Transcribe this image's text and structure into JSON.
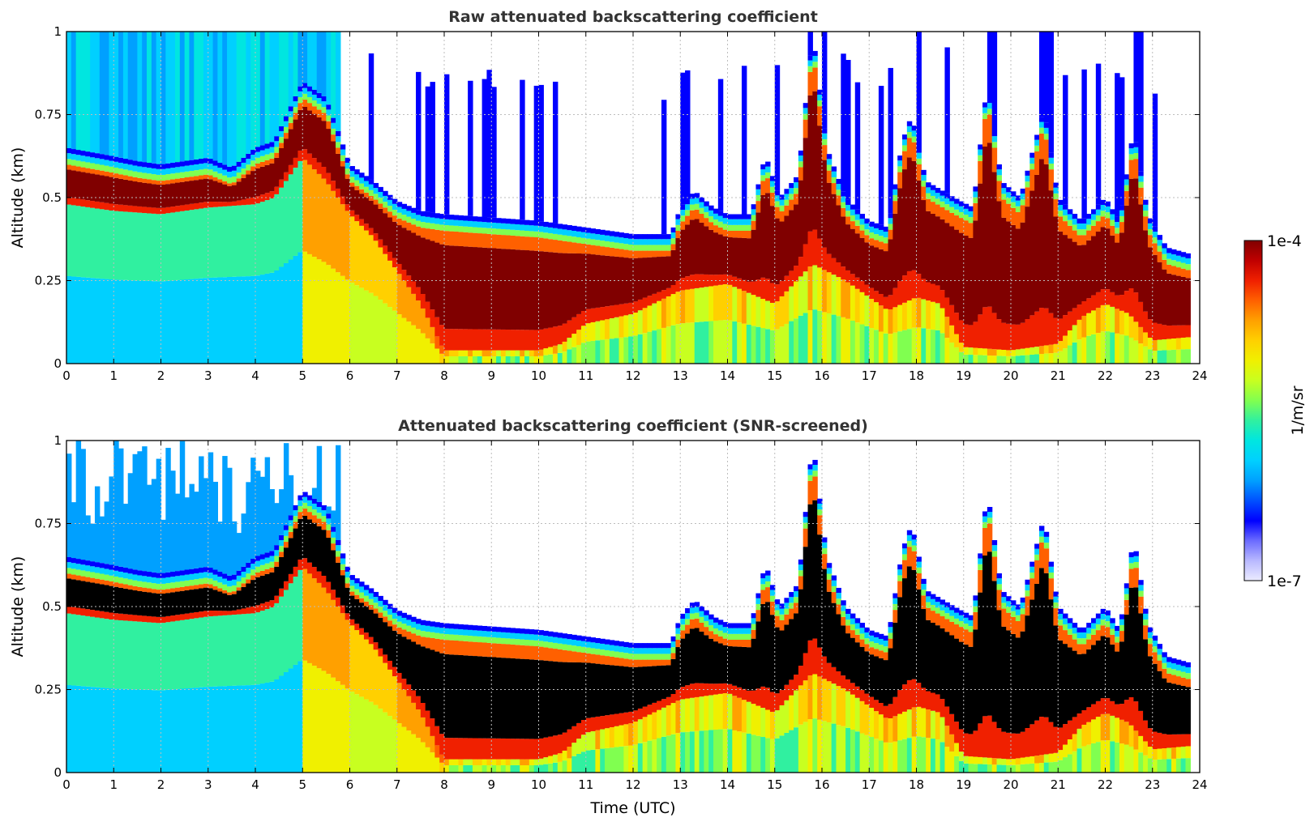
{
  "chart_data": [
    {
      "type": "heatmap",
      "title": "Raw attenuated backscattering coefficient",
      "xlabel": "",
      "ylabel": "Altitude (km)",
      "xlim": [
        0,
        24
      ],
      "ylim": [
        0,
        1
      ],
      "xticks": [
        "0",
        "1",
        "2",
        "3",
        "4",
        "5",
        "6",
        "7",
        "8",
        "9",
        "10",
        "11",
        "12",
        "13",
        "14",
        "15",
        "16",
        "17",
        "18",
        "19",
        "20",
        "21",
        "22",
        "23",
        "24"
      ],
      "yticks": [
        "0",
        "0.25",
        "0.5",
        "0.75",
        "1"
      ],
      "ytick_values": [
        0,
        0.25,
        0.5,
        0.75,
        1
      ],
      "grid": true,
      "screened": false,
      "layer_top_km": [
        [
          0,
          0.6
        ],
        [
          0.8,
          0.58
        ],
        [
          1.5,
          0.56
        ],
        [
          2,
          0.55
        ],
        [
          3,
          0.57
        ],
        [
          3.5,
          0.54
        ],
        [
          4,
          0.6
        ],
        [
          4.4,
          0.62
        ],
        [
          5,
          0.8
        ],
        [
          5.5,
          0.75
        ],
        [
          6,
          0.55
        ],
        [
          6.5,
          0.5
        ],
        [
          7,
          0.44
        ],
        [
          7.5,
          0.41
        ],
        [
          8,
          0.4
        ],
        [
          9,
          0.39
        ],
        [
          10,
          0.38
        ],
        [
          11,
          0.36
        ],
        [
          12,
          0.34
        ],
        [
          12.8,
          0.34
        ],
        [
          13,
          0.42
        ],
        [
          13.3,
          0.47
        ],
        [
          13.7,
          0.42
        ],
        [
          14,
          0.4
        ],
        [
          14.5,
          0.4
        ],
        [
          14.8,
          0.58
        ],
        [
          15.1,
          0.45
        ],
        [
          15.5,
          0.52
        ],
        [
          15.8,
          0.95
        ],
        [
          16.1,
          0.6
        ],
        [
          16.5,
          0.45
        ],
        [
          17,
          0.38
        ],
        [
          17.4,
          0.36
        ],
        [
          17.7,
          0.62
        ],
        [
          17.9,
          0.7
        ],
        [
          18.2,
          0.5
        ],
        [
          18.8,
          0.45
        ],
        [
          19.2,
          0.42
        ],
        [
          19.5,
          0.8
        ],
        [
          19.8,
          0.5
        ],
        [
          20.2,
          0.45
        ],
        [
          20.7,
          0.72
        ],
        [
          21,
          0.45
        ],
        [
          21.5,
          0.38
        ],
        [
          22,
          0.45
        ],
        [
          22.3,
          0.38
        ],
        [
          22.6,
          0.66
        ],
        [
          22.9,
          0.4
        ],
        [
          23.3,
          0.3
        ],
        [
          23.8,
          0.28
        ]
      ],
      "layer_bottom_km": [
        [
          0,
          0.48
        ],
        [
          1,
          0.46
        ],
        [
          2,
          0.45
        ],
        [
          3,
          0.47
        ],
        [
          4,
          0.48
        ],
        [
          4.4,
          0.5
        ],
        [
          5,
          0.62
        ],
        [
          5.5,
          0.55
        ],
        [
          6,
          0.45
        ],
        [
          6.5,
          0.38
        ],
        [
          7,
          0.28
        ],
        [
          7.5,
          0.18
        ],
        [
          8,
          0.04
        ],
        [
          9,
          0.04
        ],
        [
          10,
          0.04
        ],
        [
          10.5,
          0.06
        ],
        [
          11,
          0.12
        ],
        [
          12,
          0.15
        ],
        [
          13,
          0.22
        ],
        [
          14,
          0.24
        ],
        [
          15,
          0.18
        ],
        [
          15.8,
          0.3
        ],
        [
          16.5,
          0.25
        ],
        [
          17,
          0.2
        ],
        [
          17.4,
          0.16
        ],
        [
          18,
          0.2
        ],
        [
          18.5,
          0.18
        ],
        [
          19,
          0.05
        ],
        [
          20,
          0.04
        ],
        [
          21,
          0.06
        ],
        [
          21.5,
          0.14
        ],
        [
          22,
          0.18
        ],
        [
          22.5,
          0.15
        ],
        [
          23,
          0.07
        ],
        [
          23.8,
          0.08
        ]
      ]
    },
    {
      "type": "heatmap",
      "title": "Attenuated backscattering coefficient (SNR-screened)",
      "xlabel": "Time (UTC)",
      "ylabel": "Altitude (km)",
      "xlim": [
        0,
        24
      ],
      "ylim": [
        0,
        1
      ],
      "xticks": [
        "0",
        "1",
        "2",
        "3",
        "4",
        "5",
        "6",
        "7",
        "8",
        "9",
        "10",
        "11",
        "12",
        "13",
        "14",
        "15",
        "16",
        "17",
        "18",
        "19",
        "20",
        "21",
        "22",
        "23",
        "24"
      ],
      "yticks": [
        "0",
        "0.25",
        "0.5",
        "0.75",
        "1"
      ],
      "ytick_values": [
        0,
        0.25,
        0.5,
        0.75,
        1
      ],
      "grid": true,
      "screened": true,
      "layer_top_km": [
        [
          0,
          0.6
        ],
        [
          0.8,
          0.58
        ],
        [
          1.5,
          0.56
        ],
        [
          2,
          0.55
        ],
        [
          3,
          0.57
        ],
        [
          3.5,
          0.54
        ],
        [
          4,
          0.6
        ],
        [
          4.4,
          0.62
        ],
        [
          5,
          0.8
        ],
        [
          5.5,
          0.75
        ],
        [
          6,
          0.55
        ],
        [
          6.5,
          0.5
        ],
        [
          7,
          0.44
        ],
        [
          7.5,
          0.41
        ],
        [
          8,
          0.4
        ],
        [
          9,
          0.39
        ],
        [
          10,
          0.38
        ],
        [
          11,
          0.36
        ],
        [
          12,
          0.34
        ],
        [
          12.8,
          0.34
        ],
        [
          13,
          0.42
        ],
        [
          13.3,
          0.47
        ],
        [
          13.7,
          0.42
        ],
        [
          14,
          0.4
        ],
        [
          14.5,
          0.4
        ],
        [
          14.8,
          0.58
        ],
        [
          15.1,
          0.45
        ],
        [
          15.5,
          0.52
        ],
        [
          15.8,
          0.95
        ],
        [
          16.1,
          0.6
        ],
        [
          16.5,
          0.45
        ],
        [
          17,
          0.38
        ],
        [
          17.4,
          0.36
        ],
        [
          17.7,
          0.62
        ],
        [
          17.9,
          0.7
        ],
        [
          18.2,
          0.5
        ],
        [
          18.8,
          0.45
        ],
        [
          19.2,
          0.42
        ],
        [
          19.5,
          0.8
        ],
        [
          19.8,
          0.5
        ],
        [
          20.2,
          0.45
        ],
        [
          20.7,
          0.72
        ],
        [
          21,
          0.45
        ],
        [
          21.5,
          0.38
        ],
        [
          22,
          0.45
        ],
        [
          22.3,
          0.38
        ],
        [
          22.6,
          0.66
        ],
        [
          22.9,
          0.4
        ],
        [
          23.3,
          0.3
        ],
        [
          23.8,
          0.28
        ]
      ],
      "layer_bottom_km": [
        [
          0,
          0.48
        ],
        [
          1,
          0.46
        ],
        [
          2,
          0.45
        ],
        [
          3,
          0.47
        ],
        [
          4,
          0.48
        ],
        [
          4.4,
          0.5
        ],
        [
          5,
          0.62
        ],
        [
          5.5,
          0.55
        ],
        [
          6,
          0.45
        ],
        [
          6.5,
          0.38
        ],
        [
          7,
          0.28
        ],
        [
          7.5,
          0.18
        ],
        [
          8,
          0.04
        ],
        [
          9,
          0.04
        ],
        [
          10,
          0.04
        ],
        [
          10.5,
          0.06
        ],
        [
          11,
          0.12
        ],
        [
          12,
          0.15
        ],
        [
          13,
          0.22
        ],
        [
          14,
          0.24
        ],
        [
          15,
          0.18
        ],
        [
          15.8,
          0.3
        ],
        [
          16.5,
          0.25
        ],
        [
          17,
          0.2
        ],
        [
          17.4,
          0.16
        ],
        [
          18,
          0.2
        ],
        [
          18.5,
          0.18
        ],
        [
          19,
          0.05
        ],
        [
          20,
          0.04
        ],
        [
          21,
          0.06
        ],
        [
          21.5,
          0.14
        ],
        [
          22,
          0.18
        ],
        [
          22.5,
          0.15
        ],
        [
          23,
          0.07
        ],
        [
          23.8,
          0.08
        ]
      ]
    }
  ],
  "colorbar": {
    "label": "1/m/sr",
    "max_label": "1e-4",
    "min_label": "1e-7",
    "range": [
      1e-07,
      0.0001
    ],
    "scale": "log",
    "colors": [
      "#ebebff",
      "#b8b8ff",
      "#6a6aff",
      "#0000ff",
      "#0050ff",
      "#00a0ff",
      "#00d0ff",
      "#00e6e0",
      "#30f0a0",
      "#80ff50",
      "#c8ff20",
      "#f0f000",
      "#ffd000",
      "#ffa000",
      "#ff6000",
      "#f02000",
      "#c00000",
      "#800000"
    ]
  }
}
